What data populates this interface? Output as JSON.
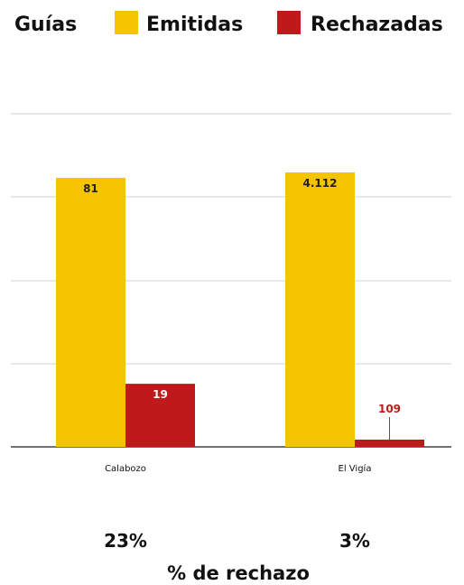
{
  "chart_data": {
    "type": "bar",
    "title": "",
    "legend": {
      "title": "Guías",
      "placement": "top"
    },
    "categories": [
      "Calabozo",
      "El Vigía"
    ],
    "series": [
      {
        "name": "Emitidas",
        "color": "#f5c400",
        "values": [
          81,
          4112
        ],
        "value_labels": [
          "81",
          "4.112"
        ]
      },
      {
        "name": "Rechazadas",
        "color": "#c0191c",
        "values": [
          19,
          109
        ],
        "value_labels": [
          "19",
          "109"
        ]
      }
    ],
    "per_category_scale": true,
    "grid": true,
    "rejection_rates": [
      "23%",
      "3%"
    ],
    "footer_label": "% de rechazo"
  },
  "colors": {
    "axis": "#444444",
    "grid": "#d0d0d0",
    "emitidas_label": "#222222",
    "rechazadas_inside_label": "#ffffff",
    "rechazadas_outside_label": "#c0191c"
  }
}
